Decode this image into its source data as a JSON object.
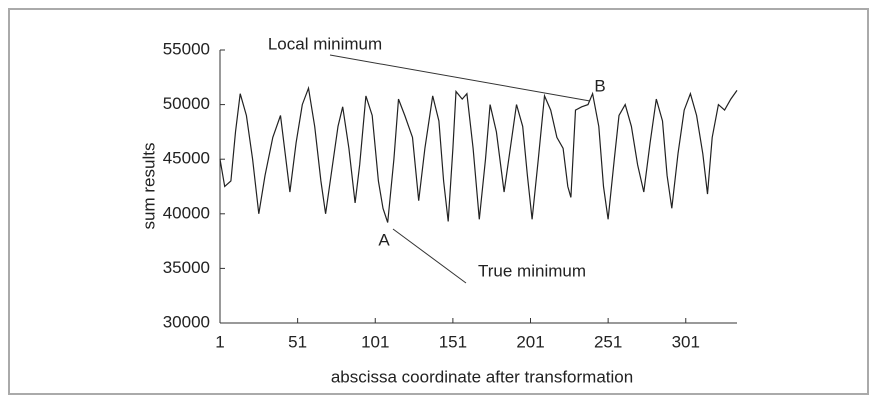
{
  "chart_data": {
    "type": "line",
    "xlabel": "abscissa coordinate after transformation",
    "ylabel": "sum results",
    "x": [
      1,
      4,
      8,
      11,
      14,
      18,
      22,
      26,
      30,
      35,
      40,
      43,
      46,
      50,
      54,
      58,
      62,
      66,
      69,
      73,
      77,
      80,
      84,
      88,
      91,
      95,
      99,
      103,
      106,
      109,
      113,
      116,
      120,
      125,
      129,
      133,
      138,
      142,
      145,
      148,
      151,
      153,
      157,
      160,
      164,
      168,
      172,
      175,
      179,
      184,
      188,
      192,
      196,
      199,
      202,
      206,
      210,
      214,
      218,
      222,
      225,
      227,
      230,
      234,
      238,
      241,
      245,
      248,
      251,
      255,
      258,
      262,
      266,
      270,
      274,
      278,
      282,
      286,
      289,
      292,
      296,
      300,
      304,
      308,
      312,
      315,
      318,
      322,
      326,
      330,
      334
    ],
    "series": [
      {
        "name": "sum results",
        "color": "#222222",
        "values": [
          45000,
          42500,
          43000,
          47500,
          51000,
          49000,
          45000,
          40000,
          43500,
          47000,
          49000,
          45500,
          42000,
          46500,
          50000,
          51500,
          48000,
          43000,
          40000,
          44000,
          48000,
          49800,
          46000,
          41000,
          44500,
          50800,
          49000,
          43000,
          40500,
          39200,
          45000,
          50500,
          49000,
          47000,
          41200,
          46000,
          50800,
          48500,
          43000,
          39300,
          46000,
          51200,
          50500,
          51000,
          46000,
          39500,
          45000,
          50000,
          47500,
          42000,
          46000,
          50000,
          48000,
          43500,
          39500,
          45000,
          50800,
          49500,
          47000,
          46000,
          42500,
          41500,
          49500,
          49800,
          50000,
          51000,
          48000,
          42500,
          39500,
          45000,
          49000,
          50000,
          48000,
          44500,
          42000,
          46500,
          50500,
          48500,
          43500,
          40500,
          45500,
          49500,
          51000,
          49000,
          45500,
          41800,
          47000,
          50000,
          49500,
          50500,
          51300
        ]
      }
    ],
    "xlim": [
      1,
      334
    ],
    "ylim": [
      30000,
      55000
    ],
    "xticks": [
      1,
      51,
      101,
      151,
      201,
      251,
      301
    ],
    "yticks": [
      30000,
      35000,
      40000,
      45000,
      50000,
      55000
    ],
    "grid": false,
    "annotations": [
      "Local minimum",
      "B",
      "A",
      "True minimum"
    ]
  }
}
